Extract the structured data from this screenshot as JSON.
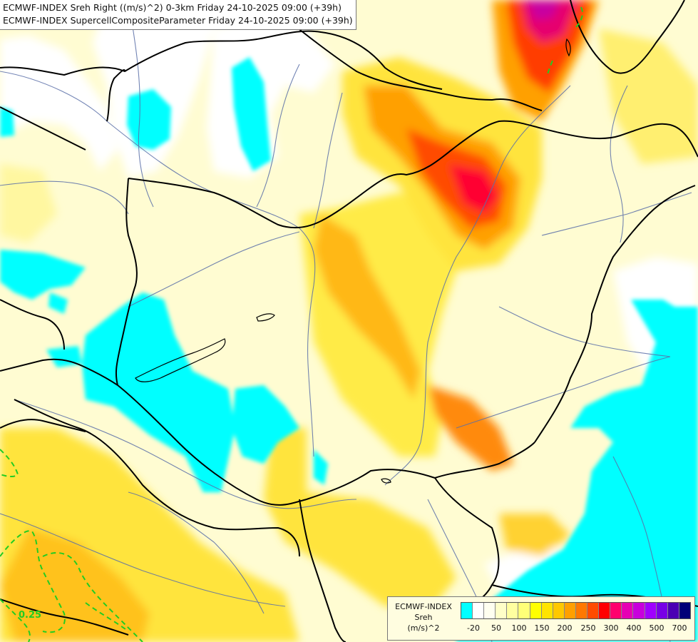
{
  "titles": {
    "line1": "ECMWF-INDEX Sreh Right ((m/s)^2) 0-3km Friday 24-10-2025 09:00 (+39h)",
    "line2": "ECMWF-INDEX SupercellCompositeParameter Friday 24-10-2025 09:00 (+39h)"
  },
  "legend": {
    "title_lines": [
      "ECMWF-INDEX",
      "Sreh",
      "(m/s)^2"
    ],
    "colors": [
      "#00ffff",
      "#ffffff",
      "#fffff0",
      "#ffffc8",
      "#ffffa0",
      "#ffff78",
      "#ffff00",
      "#ffe400",
      "#ffc800",
      "#ffa000",
      "#ff7800",
      "#ff4b00",
      "#ff0000",
      "#ff006e",
      "#e600b4",
      "#c800dc",
      "#a000ff",
      "#7800e6",
      "#4b00b4",
      "#000078"
    ],
    "tick_labels": [
      "-20",
      "50",
      "100",
      "150",
      "200",
      "250",
      "300",
      "400",
      "500",
      "700"
    ]
  },
  "contour_label": "0.25",
  "colors": {
    "low_cyan": "#00ffff",
    "pale_yellow": "#ffffc8",
    "yellow": "#ffff78",
    "orange": "#ff9a00",
    "red": "#ff3a1a",
    "magenta": "#e6006e",
    "borders": "#000000",
    "rivers": "#5a6fa8",
    "scp_contour": "#22cc22"
  }
}
